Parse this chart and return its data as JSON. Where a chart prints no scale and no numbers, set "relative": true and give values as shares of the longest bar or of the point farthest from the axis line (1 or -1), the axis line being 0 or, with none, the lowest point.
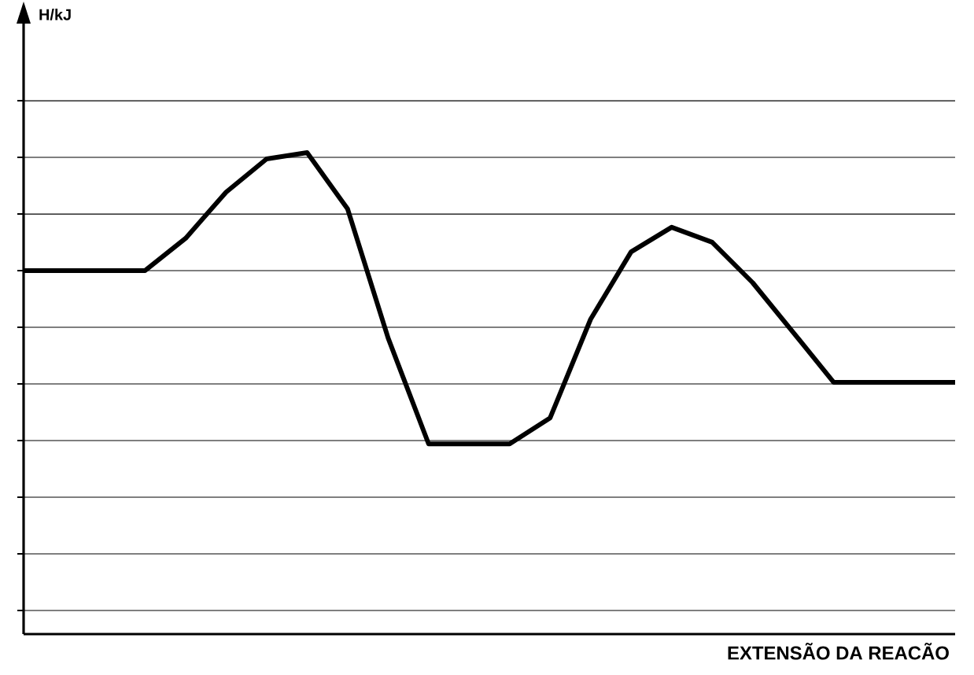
{
  "chart_data": {
    "type": "line",
    "relative": true,
    "xlabel": "EXTENSÃO DA REACÃO",
    "annotations": [
      "H/kJ"
    ],
    "grid": "y",
    "marker": "none",
    "line_style": "solid",
    "categories": [
      null,
      null,
      null,
      null,
      null,
      null,
      null,
      null,
      null,
      null,
      null,
      null,
      null,
      null,
      null,
      null,
      null,
      null,
      null,
      null,
      null,
      null,
      null,
      null
    ],
    "series": [
      {
        "color": "#000000",
        "values": [
          0.755,
          0.755,
          0.755,
          0.755,
          0.822,
          0.918,
          0.987,
          1,
          0.883,
          0.615,
          0.395,
          0.395,
          0.395,
          0.449,
          0.654,
          0.794,
          0.845,
          0.814,
          0.73,
          0.627,
          0.523,
          0.523,
          0.523,
          0.523
        ]
      }
    ]
  }
}
